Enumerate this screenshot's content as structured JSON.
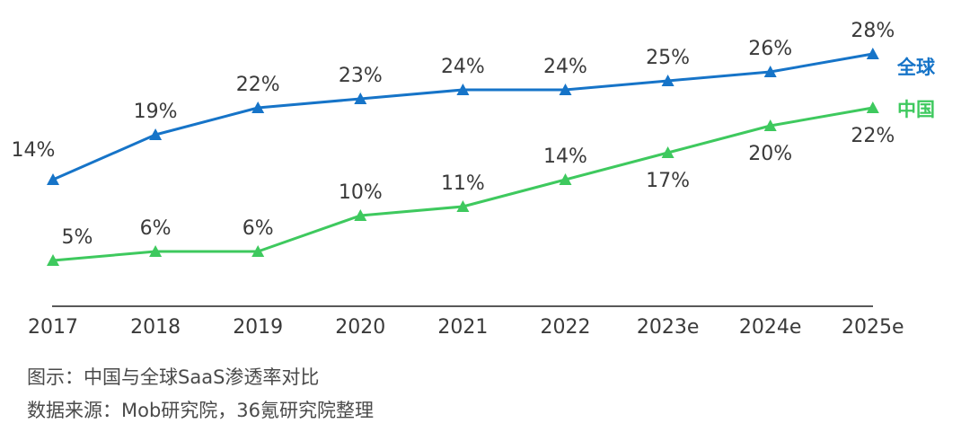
{
  "chart_data": {
    "type": "line",
    "title": "",
    "xlabel": "",
    "ylabel": "",
    "categories": [
      "2017",
      "2018",
      "2019",
      "2020",
      "2021",
      "2022",
      "2023e",
      "2024e",
      "2025e"
    ],
    "ylim": [
      0,
      30
    ],
    "grid": false,
    "series": [
      {
        "name": "全球",
        "color": "#1674c8",
        "values": [
          14,
          19,
          22,
          23,
          24,
          24,
          25,
          26,
          28
        ],
        "labels": [
          "14%",
          "19%",
          "22%",
          "23%",
          "24%",
          "24%",
          "25%",
          "26%",
          "28%"
        ]
      },
      {
        "name": "中国",
        "color": "#3ec95e",
        "values": [
          5,
          6,
          6,
          10,
          11,
          14,
          17,
          20,
          22
        ],
        "labels": [
          "5%",
          "6%",
          "6%",
          "10%",
          "11%",
          "14%",
          "17%",
          "20%",
          "22%"
        ]
      }
    ]
  },
  "caption": {
    "title": "图示：中国与全球SaaS渗透率对比",
    "source": "数据来源：Mob研究院，36氪研究院整理"
  }
}
